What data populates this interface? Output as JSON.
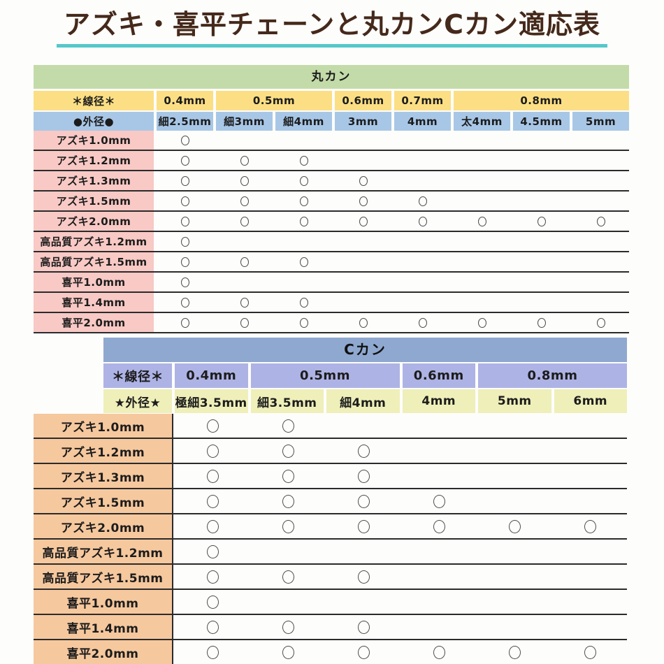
{
  "title": "アズキ・喜平チェーンと丸カンCカン適応表",
  "mark_symbol": "○",
  "colors": {
    "title_text": "#45291b",
    "title_underline": "#55c8ca",
    "line": "#2b2b2b",
    "circle": "#4d4d4d",
    "maru_band": "#c3dba9",
    "maru_wire": "#fcdf84",
    "maru_outer": "#a8c7e7",
    "maru_label": "#f8c9c5",
    "c_band": "#8fa8d0",
    "c_wire": "#aeb3e5",
    "c_outer": "#efefba",
    "c_label": "#f6c89e"
  },
  "tables": [
    {
      "name": "丸カン",
      "wire_header": "＊線径＊",
      "outer_header": "●外径●",
      "wire_groups": [
        {
          "label": "0.4mm",
          "span": 1
        },
        {
          "label": "0.5mm",
          "span": 2
        },
        {
          "label": "0.6mm",
          "span": 1
        },
        {
          "label": "0.7mm",
          "span": 1
        },
        {
          "label": "0.8mm",
          "span": 3
        }
      ],
      "outer_cols": [
        "細2.5mm",
        "細3mm",
        "細4mm",
        "3mm",
        "4mm",
        "太4mm",
        "4.5mm",
        "5mm"
      ],
      "rows": [
        {
          "label": "アズキ1.0mm",
          "marks": [
            1,
            0,
            0,
            0,
            0,
            0,
            0,
            0
          ]
        },
        {
          "label": "アズキ1.2mm",
          "marks": [
            1,
            1,
            1,
            0,
            0,
            0,
            0,
            0
          ]
        },
        {
          "label": "アズキ1.3mm",
          "marks": [
            1,
            1,
            1,
            1,
            0,
            0,
            0,
            0
          ]
        },
        {
          "label": "アズキ1.5mm",
          "marks": [
            1,
            1,
            1,
            1,
            1,
            0,
            0,
            0
          ]
        },
        {
          "label": "アズキ2.0mm",
          "marks": [
            1,
            1,
            1,
            1,
            1,
            1,
            1,
            1
          ]
        },
        {
          "label": "高品質アズキ1.2mm",
          "marks": [
            1,
            0,
            0,
            0,
            0,
            0,
            0,
            0
          ]
        },
        {
          "label": "高品質アズキ1.5mm",
          "marks": [
            1,
            1,
            1,
            0,
            0,
            0,
            0,
            0
          ]
        },
        {
          "label": "喜平1.0mm",
          "marks": [
            1,
            0,
            0,
            0,
            0,
            0,
            0,
            0
          ]
        },
        {
          "label": "喜平1.4mm",
          "marks": [
            1,
            1,
            1,
            0,
            0,
            0,
            0,
            0
          ]
        },
        {
          "label": "喜平2.0mm",
          "marks": [
            1,
            1,
            1,
            1,
            1,
            1,
            1,
            1
          ]
        }
      ]
    },
    {
      "name": "Cカン",
      "wire_header": "＊線径＊",
      "outer_header": "★外径★",
      "wire_groups": [
        {
          "label": "0.4mm",
          "span": 1
        },
        {
          "label": "0.5mm",
          "span": 2
        },
        {
          "label": "0.6mm",
          "span": 1
        },
        {
          "label": "0.8mm",
          "span": 2
        }
      ],
      "outer_cols": [
        "極細3.5mm",
        "細3.5mm",
        "細4mm",
        "4mm",
        "5mm",
        "6mm"
      ],
      "rows": [
        {
          "label": "アズキ1.0mm",
          "marks": [
            1,
            1,
            0,
            0,
            0,
            0
          ]
        },
        {
          "label": "アズキ1.2mm",
          "marks": [
            1,
            1,
            1,
            0,
            0,
            0
          ]
        },
        {
          "label": "アズキ1.3mm",
          "marks": [
            1,
            1,
            1,
            0,
            0,
            0
          ]
        },
        {
          "label": "アズキ1.5mm",
          "marks": [
            1,
            1,
            1,
            1,
            0,
            0
          ]
        },
        {
          "label": "アズキ2.0mm",
          "marks": [
            1,
            1,
            1,
            1,
            1,
            1
          ]
        },
        {
          "label": "高品質アズキ1.2mm",
          "marks": [
            1,
            0,
            0,
            0,
            0,
            0
          ]
        },
        {
          "label": "高品質アズキ1.5mm",
          "marks": [
            1,
            1,
            1,
            0,
            0,
            0
          ]
        },
        {
          "label": "喜平1.0mm",
          "marks": [
            1,
            0,
            0,
            0,
            0,
            0
          ]
        },
        {
          "label": "喜平1.4mm",
          "marks": [
            1,
            1,
            1,
            0,
            0,
            0
          ]
        },
        {
          "label": "喜平2.0mm",
          "marks": [
            1,
            1,
            1,
            1,
            1,
            1
          ]
        }
      ]
    }
  ]
}
